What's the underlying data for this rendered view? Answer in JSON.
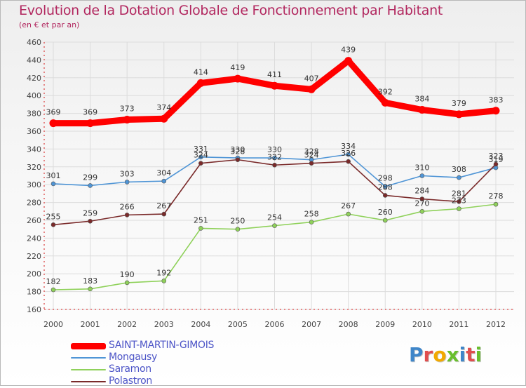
{
  "title": "Evolution de la Dotation Globale de Fonctionnement par Habitant",
  "subtitle": "(en € et par an)",
  "logo": {
    "text": "Proxiti",
    "letter_colors": [
      "#3f86c9",
      "#e04e4e",
      "#f2a900",
      "#6abf2e",
      "#3f86c9",
      "#e04e4e",
      "#6abf2e"
    ]
  },
  "chart_data": {
    "type": "line",
    "title": "Evolution de la Dotation Globale de Fonctionnement par Habitant",
    "subtitle": "(en € et par an)",
    "x": [
      "2000",
      "2001",
      "2002",
      "2003",
      "2004",
      "2005",
      "2006",
      "2007",
      "2008",
      "2009",
      "2010",
      "2011",
      "2012"
    ],
    "yticks": [
      "160",
      "180",
      "200",
      "220",
      "240",
      "260",
      "280",
      "300",
      "320",
      "340",
      "360",
      "380",
      "400",
      "420",
      "440",
      "460"
    ],
    "ylim": [
      160,
      460
    ],
    "grid": true,
    "legend_position": "bottom-left",
    "series": [
      {
        "name": "SAINT-MARTIN-GIMOIS",
        "color": "#ff0000",
        "values": [
          369,
          369,
          373,
          374,
          414,
          419,
          411,
          407,
          439,
          392,
          384,
          379,
          383
        ],
        "labels": [
          "369",
          "369",
          "373",
          "374",
          "414",
          "419",
          "411",
          "407",
          "439",
          "392",
          "384",
          "379",
          "383"
        ]
      },
      {
        "name": "Mongausy",
        "color": "#4f95d6",
        "values": [
          301,
          299,
          303,
          304,
          331,
          330,
          330,
          328,
          334,
          298,
          310,
          308,
          319
        ],
        "labels": [
          "301",
          "299",
          "303",
          "304",
          "331",
          "330",
          "330",
          "328",
          "334",
          "298",
          "310",
          "308",
          "319"
        ]
      },
      {
        "name": "Saramon",
        "color": "#8fd15a",
        "values": [
          182,
          183,
          190,
          192,
          251,
          250,
          254,
          258,
          267,
          260,
          270,
          273,
          278
        ],
        "labels": [
          "182",
          "183",
          "190",
          "192",
          "251",
          "250",
          "254",
          "258",
          "267",
          "260",
          "270",
          "273",
          "278"
        ]
      },
      {
        "name": "Polastron",
        "color": "#7a2a2a",
        "values": [
          255,
          259,
          266,
          267,
          324,
          328,
          322,
          324,
          326,
          288,
          284,
          281,
          323
        ],
        "labels": [
          "255",
          "259",
          "266",
          "267",
          "324",
          "328",
          "322",
          "324",
          "326",
          "288",
          "284",
          "281",
          "323"
        ]
      }
    ]
  }
}
